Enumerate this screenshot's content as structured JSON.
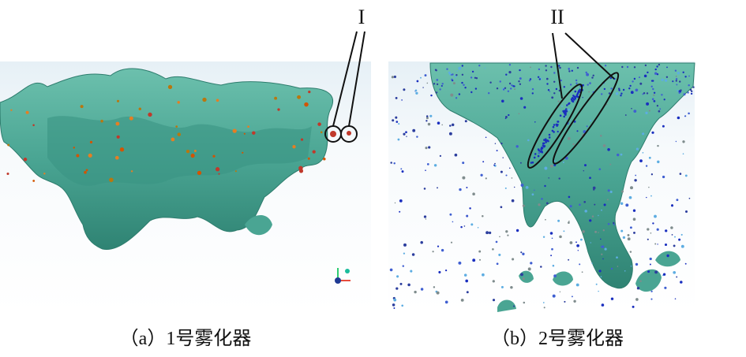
{
  "figure": {
    "panels": [
      {
        "caption": "（a）1号雾化器",
        "marker": "I"
      },
      {
        "caption": "（b）2号雾化器",
        "marker": "II"
      }
    ]
  }
}
